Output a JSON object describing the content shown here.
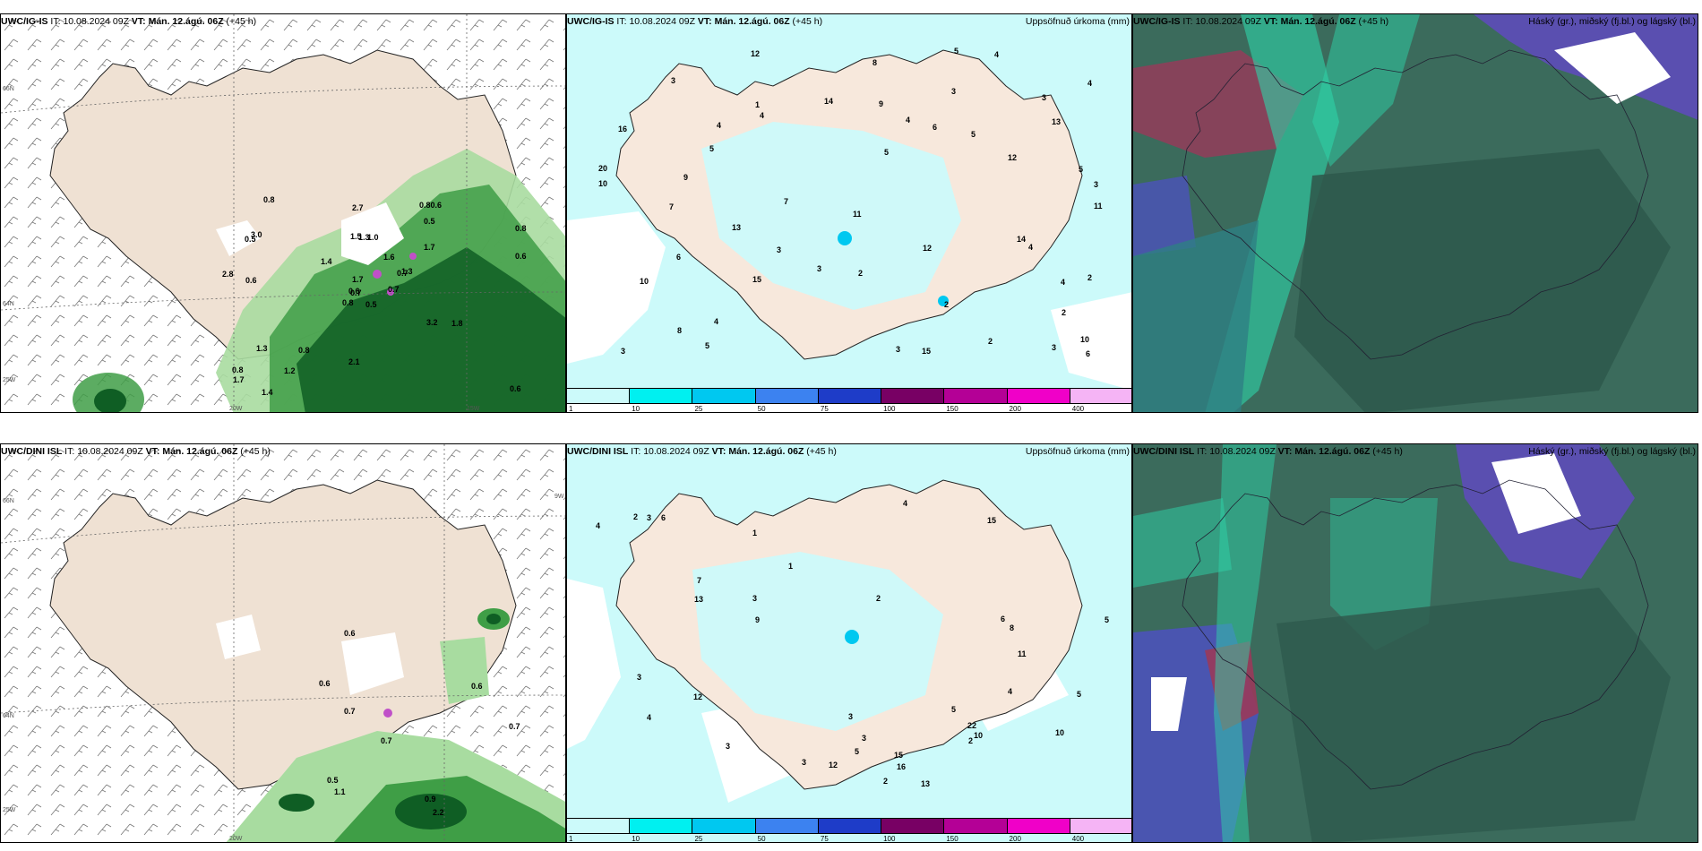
{
  "panels": [
    {
      "model": "UWC/IG-IS",
      "it_label": "IT:",
      "it": "10.08.2024 09Z",
      "vt_label": "VT:",
      "vt": "Mán. 12.ágú. 06Z",
      "lead": "(+45 h)",
      "right": ""
    },
    {
      "model": "UWC/IG-IS",
      "it_label": "IT:",
      "it": "10.08.2024 09Z",
      "vt_label": "VT:",
      "vt": "Mán. 12.ágú. 06Z",
      "lead": "(+45 h)",
      "right": "Uppsöfnuð úrkoma (mm)"
    },
    {
      "model": "UWC/IG-IS",
      "it_label": "IT:",
      "it": "10.08.2024 09Z",
      "vt_label": "VT:",
      "vt": "Mán. 12.ágú. 06Z",
      "lead": "(+45 h)",
      "right": "Háský (gr.), miðský (fj.bl.) og lágský (bl.)"
    },
    {
      "model": "UWC/DINI ISL",
      "it_label": "IT:",
      "it": "10.08.2024 09Z",
      "vt_label": "VT:",
      "vt": "Mán. 12.ágú. 06Z",
      "lead": "(+45 h)",
      "right": ""
    },
    {
      "model": "UWC/DINI ISL",
      "it_label": "IT:",
      "it": "10.08.2024 09Z",
      "vt_label": "VT:",
      "vt": "Mán. 12.ágú. 06Z",
      "lead": "(+45 h)",
      "right": "Uppsöfnuð úrkoma (mm)"
    },
    {
      "model": "UWC/DINI ISL",
      "it_label": "IT:",
      "it": "10.08.2024 09Z",
      "vt_label": "VT:",
      "vt": "Mán. 12.ágú. 06Z",
      "lead": "(+45 h)",
      "right": "Háský (gr.), miðský (fj.bl.) og lágský (bl.)"
    }
  ],
  "coords": {
    "lat66": "66N",
    "lat64": "64N",
    "lon25": "25W",
    "lon20": "20W",
    "lon15": "15W",
    "lon10": "10W",
    "lon9": "9W"
  },
  "colorbar": {
    "ticks": [
      "1",
      "10",
      "25",
      "50",
      "75",
      "100",
      "150",
      "200",
      "400"
    ],
    "colors": [
      "#ccfafa",
      "#00f0f0",
      "#00c8f0",
      "#3c82f0",
      "#1e3cc8",
      "#780064",
      "#b40096",
      "#f000c8",
      "#f5b4f5"
    ]
  },
  "ig_snow_labels": [
    "0.5",
    "0.5",
    "0.7",
    "0.8",
    "0.7",
    "0.8",
    "0.80.6",
    "1.0",
    "0.5",
    "0.7",
    "0.8",
    "0.6",
    "0.6",
    "0.8",
    "0.8",
    "1.7",
    "1.4",
    "1.5",
    "1.6",
    "1.3",
    "1.4",
    "1.7",
    "1.2",
    "1.3",
    "1.3",
    "1.8",
    "3.0",
    "2.7",
    "2.8",
    "3.2",
    "0.6",
    "0.6",
    "2.1",
    "1.7"
  ],
  "dini_snow_labels": [
    "2.2",
    "0.6",
    "0.5",
    "0.6",
    "0.6",
    "0.9",
    "0.7",
    "0.7",
    "0.7",
    "1.1"
  ],
  "ig_precip_labels": [
    "4",
    "5",
    "6",
    "3",
    "7",
    "2",
    "3",
    "5",
    "4",
    "3",
    "5",
    "4",
    "12",
    "15",
    "10",
    "11",
    "13",
    "20",
    "12",
    "14",
    "10",
    "9",
    "8",
    "6",
    "5",
    "4",
    "3",
    "2",
    "3",
    "4",
    "5",
    "6",
    "7",
    "8",
    "9",
    "10",
    "11",
    "12",
    "13",
    "14",
    "15",
    "16",
    "3",
    "2",
    "2",
    "3",
    "4",
    "5",
    "1",
    "4",
    "3",
    "4",
    "2",
    "3"
  ],
  "dini_precip_labels": [
    "3",
    "3",
    "2",
    "4",
    "5",
    "4",
    "5",
    "3",
    "6",
    "7",
    "12",
    "10",
    "12",
    "13",
    "15",
    "16",
    "22",
    "10",
    "5",
    "8",
    "6",
    "11",
    "13",
    "9",
    "15",
    "3",
    "4",
    "2",
    "1",
    "3",
    "2",
    "5",
    "4",
    "3",
    "2",
    "1",
    "3"
  ]
}
